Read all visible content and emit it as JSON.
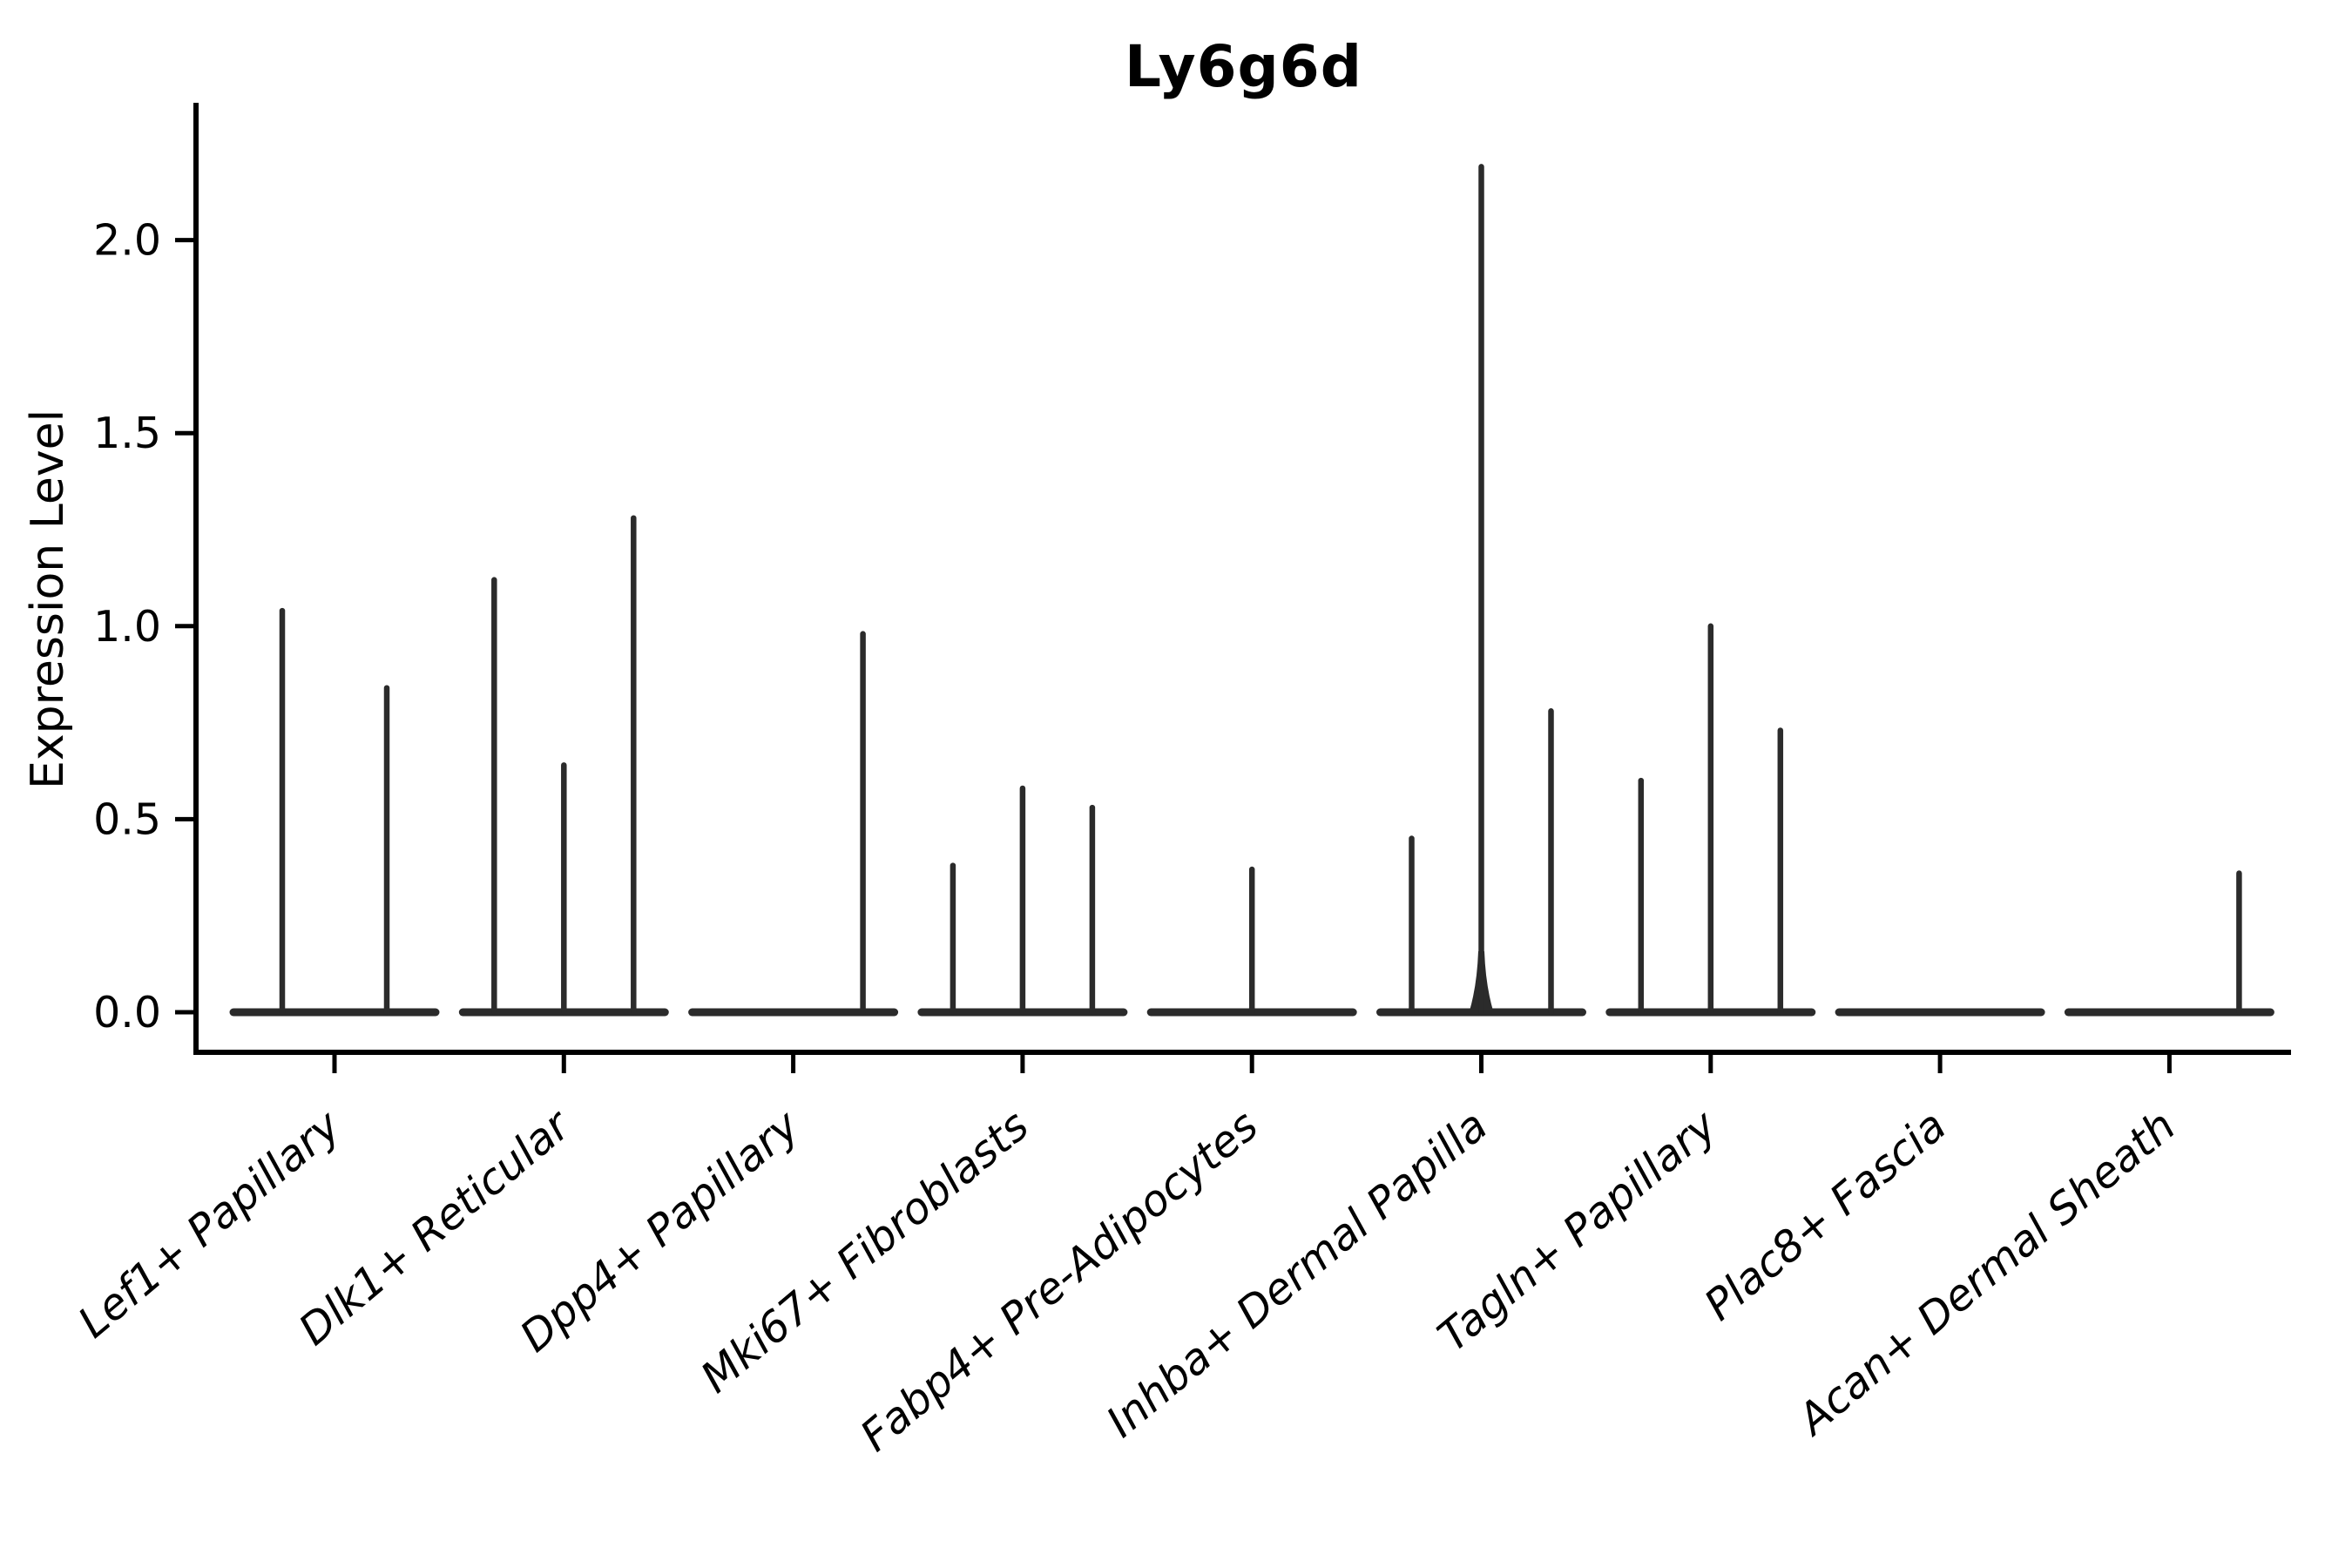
{
  "figure": {
    "title": "Ly6g6d",
    "ylabel": "Expression Level"
  },
  "chart_data": {
    "type": "violin",
    "title": "Ly6g6d",
    "xlabel": "",
    "ylabel": "Expression Level",
    "ylim": [
      -0.1,
      2.35
    ],
    "grid": false,
    "legend": "none",
    "yticks": [
      0.0,
      0.5,
      1.0,
      1.5,
      2.0
    ],
    "ytick_labels": [
      "0.0",
      "0.5",
      "1.0",
      "1.5",
      "2.0"
    ],
    "categories": [
      "Lef1+ Papillary",
      "Dlk1+ Reticular",
      "Dpp4+ Papillary",
      "Mki67+ Fibroblasts",
      "Fabp4+ Pre-Adipocytes",
      "Inhba+ Dermal Papilla",
      "Tagln+ Papillary",
      "Plac8+ Fascia",
      "Acan+ Dermal Sheath"
    ],
    "series": [
      {
        "category": "Lef1+ Papillary",
        "violin_peak_values": [
          1.04,
          0.84
        ]
      },
      {
        "category": "Dlk1+ Reticular",
        "violin_peak_values": [
          1.12,
          0.64,
          1.28
        ]
      },
      {
        "category": "Dpp4+ Papillary",
        "violin_peak_values": [
          0,
          0,
          0.98
        ]
      },
      {
        "category": "Mki67+ Fibroblasts",
        "violin_peak_values": [
          0.38,
          0.58,
          0.53
        ]
      },
      {
        "category": "Fabp4+ Pre-Adipocytes",
        "violin_peak_values": [
          0,
          0.37,
          0
        ]
      },
      {
        "category": "Inhba+ Dermal Papilla",
        "violin_peak_values": [
          0.45,
          2.19,
          0.78
        ]
      },
      {
        "category": "Tagln+ Papillary",
        "violin_peak_values": [
          0.6,
          1.0,
          0.73
        ]
      },
      {
        "category": "Plac8+ Fascia",
        "violin_peak_values": [
          0,
          0,
          0
        ]
      },
      {
        "category": "Acan+ Dermal Sheath",
        "violin_peak_values": [
          0,
          0,
          0.36
        ]
      }
    ],
    "colors": {
      "violin_line": "#2b2b2b",
      "spine": "#000000",
      "text": "#000000",
      "background": "#ffffff"
    }
  }
}
